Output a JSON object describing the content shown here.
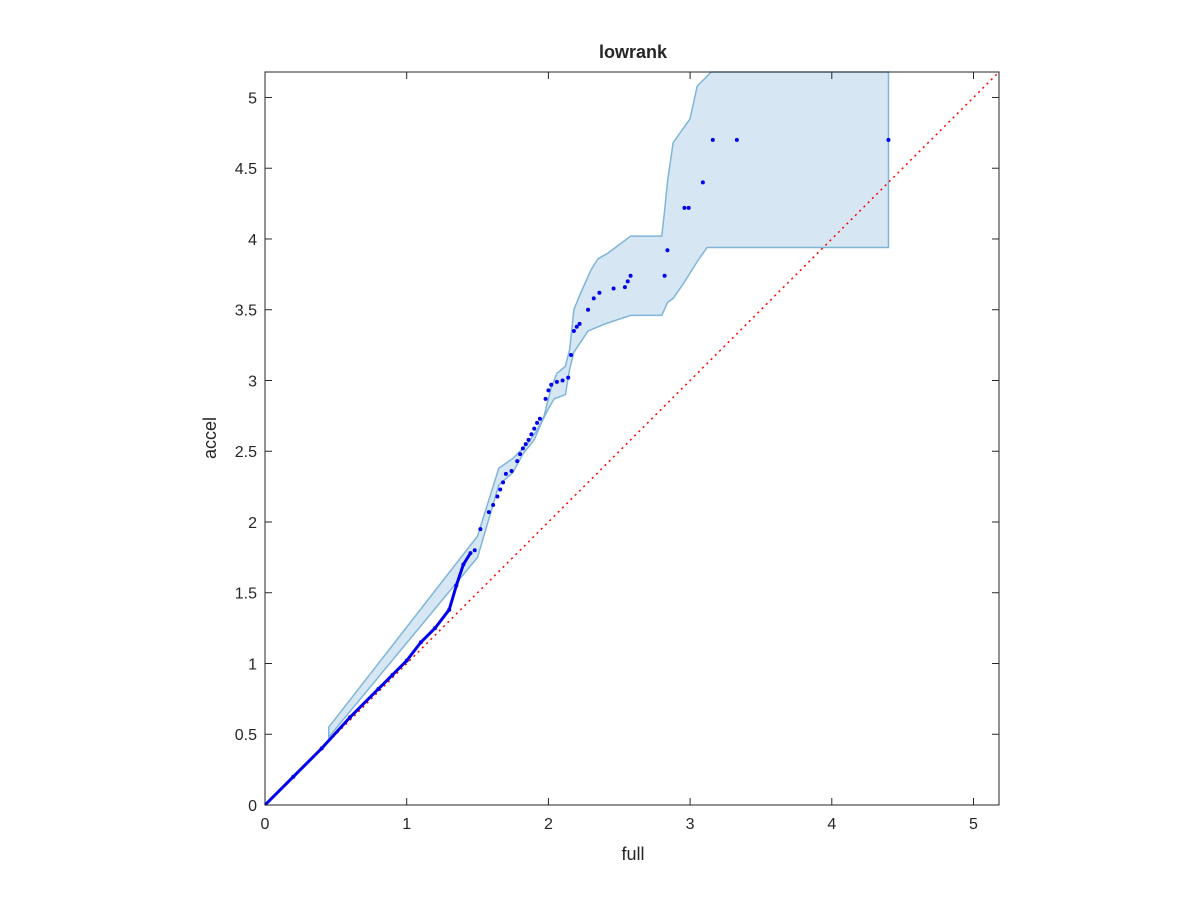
{
  "chart_data": {
    "type": "scatter",
    "title": "lowrank",
    "xlabel": "full",
    "ylabel": "accel",
    "xlim": [
      0,
      5.18
    ],
    "ylim": [
      0,
      5.18
    ],
    "xticks": [
      0,
      1,
      2,
      3,
      4,
      5
    ],
    "xtick_labels": [
      "0",
      "1",
      "2",
      "3",
      "4",
      "5"
    ],
    "yticks": [
      0,
      0.5,
      1,
      1.5,
      2,
      2.5,
      3,
      3.5,
      4,
      4.5,
      5
    ],
    "ytick_labels": [
      "0",
      "0.5",
      "1",
      "1.5",
      "2",
      "2.5",
      "3",
      "3.5",
      "4",
      "4.5",
      "5"
    ],
    "grid": false,
    "box": true,
    "colors": {
      "points": "#0000ee",
      "band_fill": "#d6e7f3",
      "band_edge": "#7fb5d9",
      "reference_line": "#ff0000"
    },
    "reference_line": {
      "x": [
        0,
        5.18
      ],
      "y": [
        0,
        5.18
      ],
      "style": "dotted"
    },
    "series": [
      {
        "values_x": [
          0.2,
          0.4,
          0.6,
          0.8,
          0.9,
          1.0,
          1.1,
          1.2,
          1.3,
          1.35,
          1.4,
          1.45,
          1.48,
          1.52,
          1.58,
          1.61,
          1.64,
          1.66,
          1.68,
          1.7,
          1.74,
          1.78,
          1.8,
          1.82,
          1.84,
          1.86,
          1.88,
          1.9,
          1.92,
          1.94,
          1.98,
          2.0,
          2.02,
          2.06,
          2.1,
          2.14,
          2.16,
          2.18,
          2.2,
          2.22,
          2.28,
          2.32,
          2.36,
          2.46,
          2.54,
          2.56,
          2.58,
          2.82,
          2.84,
          2.96,
          2.99,
          3.09,
          3.16,
          3.33,
          4.4
        ],
        "values_y": [
          0.2,
          0.4,
          0.62,
          0.82,
          0.92,
          1.02,
          1.15,
          1.25,
          1.38,
          1.55,
          1.7,
          1.78,
          1.8,
          1.95,
          2.07,
          2.12,
          2.18,
          2.23,
          2.28,
          2.34,
          2.36,
          2.43,
          2.48,
          2.52,
          2.55,
          2.58,
          2.62,
          2.66,
          2.7,
          2.73,
          2.87,
          2.93,
          2.97,
          2.99,
          3.0,
          3.02,
          3.18,
          3.35,
          3.38,
          3.4,
          3.5,
          3.58,
          3.62,
          3.65,
          3.66,
          3.7,
          3.74,
          3.74,
          3.92,
          4.22,
          4.22,
          4.4,
          4.7,
          4.7,
          4.7
        ]
      }
    ],
    "band": {
      "upper_x": [
        0.45,
        1.5,
        1.65,
        1.75,
        1.85,
        1.92,
        1.97,
        2.02,
        2.06,
        2.12,
        2.15,
        2.18,
        2.22,
        2.3,
        2.35,
        2.42,
        2.58,
        2.8,
        2.82,
        2.84,
        2.88,
        3.0,
        3.05,
        3.15,
        3.18,
        4.4,
        4.4
      ],
      "upper_y": [
        0.55,
        1.9,
        2.38,
        2.45,
        2.55,
        2.65,
        2.75,
        2.95,
        3.05,
        3.1,
        3.22,
        3.5,
        3.6,
        3.78,
        3.86,
        3.9,
        4.02,
        4.02,
        4.2,
        4.4,
        4.68,
        4.85,
        5.08,
        5.18,
        5.18,
        5.18,
        3.94
      ],
      "lower_x": [
        4.4,
        3.12,
        3.05,
        2.95,
        2.88,
        2.84,
        2.8,
        2.58,
        2.4,
        2.28,
        2.18,
        2.15,
        2.12,
        2.04,
        2.0,
        1.95,
        1.9,
        1.82,
        1.75,
        1.65,
        1.5,
        0.45
      ],
      "lower_y": [
        3.94,
        3.94,
        3.84,
        3.68,
        3.58,
        3.55,
        3.46,
        3.46,
        3.4,
        3.35,
        3.2,
        3.08,
        2.9,
        2.87,
        2.8,
        2.7,
        2.58,
        2.48,
        2.35,
        2.26,
        1.75,
        0.48
      ]
    }
  }
}
